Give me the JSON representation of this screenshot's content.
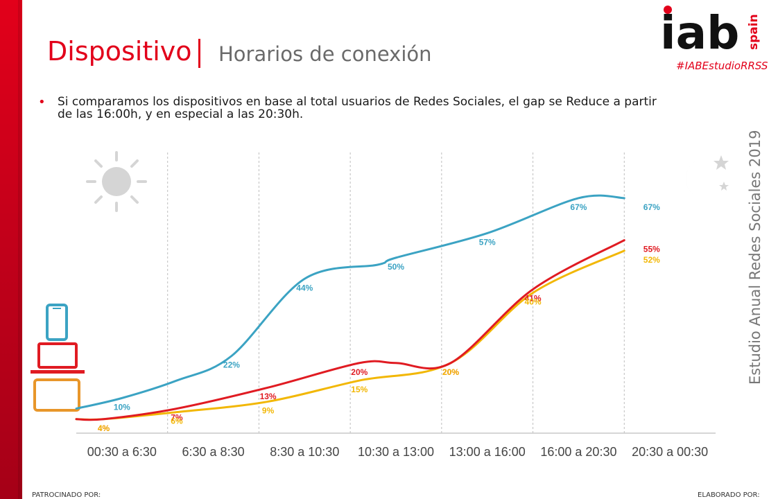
{
  "header": {
    "title": "Dispositivo",
    "subtitle": "Horarios de conexión",
    "hashtag": "#IABEstudioRRSS"
  },
  "logo": {
    "main": "iab",
    "suffix": "spain",
    "brand_color": "#e2001a"
  },
  "bullet": "Si comparamos los dispositivos en base al total usuarios de Redes Sociales, el gap se Reduce a partir de las 16:00h, y en especial a las 20:30h.",
  "side_label": "Estudio Anual Redes Sociales 2019",
  "footer": {
    "left": "PATROCINADO POR:",
    "right": "ELABORADO POR:"
  },
  "icons": {
    "sun": "sun-icon",
    "moon": "moon-stars-icon",
    "devices": [
      "smartphone-icon",
      "laptop-icon",
      "tablet-icon"
    ]
  },
  "chart_data": {
    "type": "line",
    "categories": [
      "00:30 a 6:30",
      "6:30 a 8:30",
      "8:30 a 10:30",
      "10:30 a 13:00",
      "13:00 a 16:00",
      "16:00 a 20:30",
      "20:30 a 00:30"
    ],
    "x": [
      0.5,
      1.5,
      2.5,
      3.5,
      4.5,
      5.5,
      6.5
    ],
    "ylim": [
      0,
      80
    ],
    "grid": "vertical dashed",
    "series": [
      {
        "icon": "smartphone-icon",
        "color": "#3ba3c3",
        "points": [
          {
            "x": 0.0,
            "y": 7
          },
          {
            "x": 0.5,
            "y": 10
          },
          {
            "x": 1.1,
            "y": 15
          },
          {
            "x": 1.7,
            "y": 22
          },
          {
            "x": 2.5,
            "y": 44
          },
          {
            "x": 3.3,
            "y": 48
          },
          {
            "x": 3.5,
            "y": 50
          },
          {
            "x": 4.5,
            "y": 57
          },
          {
            "x": 5.5,
            "y": 67
          },
          {
            "x": 6.0,
            "y": 67
          }
        ],
        "labels": [
          {
            "x": 0.5,
            "y": 10,
            "text": "10%"
          },
          {
            "x": 1.7,
            "y": 22,
            "text": "22%"
          },
          {
            "x": 2.5,
            "y": 44,
            "text": "44%"
          },
          {
            "x": 3.5,
            "y": 50,
            "text": "50%"
          },
          {
            "x": 4.5,
            "y": 57,
            "text": "57%"
          },
          {
            "x": 5.5,
            "y": 67,
            "text": "67%"
          },
          {
            "x": 6.3,
            "y": 67,
            "text": "67%"
          }
        ]
      },
      {
        "icon": "laptop-icon",
        "color": "#e01b22",
        "points": [
          {
            "x": 0.0,
            "y": 4
          },
          {
            "x": 0.3,
            "y": 4
          },
          {
            "x": 1.1,
            "y": 7
          },
          {
            "x": 2.1,
            "y": 13
          },
          {
            "x": 3.1,
            "y": 20
          },
          {
            "x": 3.5,
            "y": 20
          },
          {
            "x": 4.1,
            "y": 20
          },
          {
            "x": 5.0,
            "y": 41
          },
          {
            "x": 6.0,
            "y": 55
          }
        ],
        "labels": [
          {
            "x": 0.3,
            "y": 4,
            "text": "4%"
          },
          {
            "x": 1.1,
            "y": 7,
            "text": "7%"
          },
          {
            "x": 2.1,
            "y": 13,
            "text": "13%"
          },
          {
            "x": 3.1,
            "y": 20,
            "text": "20%"
          },
          {
            "x": 4.1,
            "y": 20,
            "text": "20%"
          },
          {
            "x": 5.0,
            "y": 41,
            "text": "41%"
          },
          {
            "x": 6.3,
            "y": 55,
            "text": "55%"
          }
        ]
      },
      {
        "icon": "tablet-icon",
        "color": "#f2b705",
        "points": [
          {
            "x": 0.0,
            "y": 4
          },
          {
            "x": 0.3,
            "y": 4
          },
          {
            "x": 1.1,
            "y": 6
          },
          {
            "x": 2.1,
            "y": 9
          },
          {
            "x": 3.1,
            "y": 15
          },
          {
            "x": 4.1,
            "y": 20
          },
          {
            "x": 5.0,
            "y": 40
          },
          {
            "x": 6.0,
            "y": 52
          }
        ],
        "labels": [
          {
            "x": 0.3,
            "y": 4,
            "text": "4%"
          },
          {
            "x": 1.1,
            "y": 6,
            "text": "6%"
          },
          {
            "x": 2.1,
            "y": 9,
            "text": "9%"
          },
          {
            "x": 3.1,
            "y": 15,
            "text": "15%"
          },
          {
            "x": 4.1,
            "y": 20,
            "text": "20%"
          },
          {
            "x": 5.0,
            "y": 40,
            "text": "40%"
          },
          {
            "x": 6.3,
            "y": 52,
            "text": "52%"
          }
        ]
      }
    ]
  }
}
